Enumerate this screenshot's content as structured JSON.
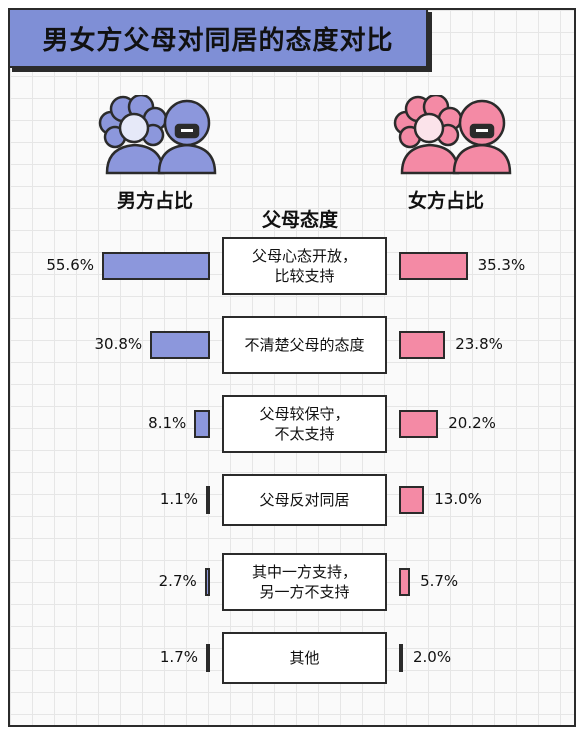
{
  "title": "男女方父母对同居的态度对比",
  "headers": {
    "male": "男方占比",
    "center": "父母态度",
    "female": "女方占比"
  },
  "colors": {
    "male": "#8c97dc",
    "female": "#f48aa5",
    "title_bg": "#7f8fd6"
  },
  "chart_data": {
    "type": "bar",
    "categories": [
      "父母心态开放，\n比较支持",
      "不清楚父母的态度",
      "父母较保守，\n不太支持",
      "父母反对同居",
      "其中一方支持，\n另一方不支持",
      "其他"
    ],
    "series": [
      {
        "name": "男方占比",
        "values": [
          55.6,
          30.8,
          8.1,
          1.1,
          2.7,
          1.7
        ],
        "labels": [
          "55.6%",
          "30.8%",
          "8.1%",
          "1.1%",
          "2.7%",
          "1.7%"
        ]
      },
      {
        "name": "女方占比",
        "values": [
          35.3,
          23.8,
          20.2,
          13.0,
          5.7,
          2.0
        ],
        "labels": [
          "35.3%",
          "23.8%",
          "20.2%",
          "13.0%",
          "5.7%",
          "2.0%"
        ]
      }
    ],
    "unit": "%"
  }
}
